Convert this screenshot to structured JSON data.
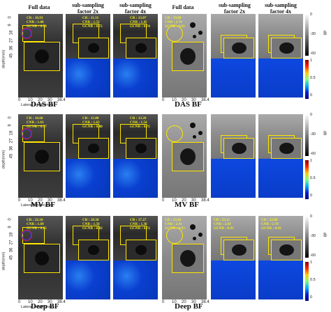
{
  "left_headers": {
    "full": "Full data",
    "sub2": "sub-sampling factor 2x",
    "sub4": "sub-sampling factor 4x"
  },
  "right_headers": {
    "full": "Full data",
    "sub2": "sub-sampling factor 2x",
    "sub4": "sub-sampling factor 4x"
  },
  "axes": {
    "depth_label": "depth(mm)",
    "lateral_label": "Lateral length(mm)",
    "depth_ticks": [
      "0",
      "9",
      "18",
      "27",
      "36",
      "45"
    ],
    "lateral_ticks": [
      "0",
      "10",
      "20",
      "30",
      "38.4"
    ]
  },
  "colorbar_gray": {
    "ticks": [
      "0",
      "-30",
      "-60"
    ],
    "unit": "dB"
  },
  "colorbar_color": {
    "ticks": [
      "1",
      "0.5",
      "0"
    ]
  },
  "rows": [
    {
      "method": "DAS BF",
      "left_metrics": [
        [
          "CR : 16.93",
          "CNR : 1.60",
          "GCNR : 0.78"
        ],
        [
          "CR : 11.31",
          "CNR : 1.52",
          "GCNR : 0.75"
        ],
        [
          "CR : 13.07",
          "CNR : 1.45",
          "GCNR : 0.74"
        ]
      ],
      "right_metrics": [
        [
          "CR : 19.88",
          "CNR : 2.74",
          "GCNR : 0.92"
        ],
        [
          "",
          "",
          ""
        ],
        [
          "",
          "",
          ""
        ]
      ]
    },
    {
      "method": "MV BF",
      "left_metrics": [
        [
          "CR : 16.68",
          "CNR : 1.61",
          "GCNR : 0.77"
        ],
        [
          "CR : 15.00",
          "CNR : 1.63",
          "GCNR : 0.80"
        ],
        [
          "CR : 13.26",
          "CNR : 1.54",
          "GCNR : 0.75"
        ]
      ],
      "right_metrics": [
        [
          "",
          "",
          ""
        ],
        [
          "",
          "",
          ""
        ],
        [
          "",
          "",
          ""
        ]
      ]
    },
    {
      "method": "Deep BF",
      "left_metrics": [
        [
          "CR : 22.10",
          "CNR : 1.69",
          "GCNR : 0.85"
        ],
        [
          "CR : 20.38",
          "CNR : 1.56",
          "GCNR : 0.82"
        ],
        [
          "CR : 17.27",
          "CNR : 1.36",
          "GCNR : 0.72"
        ]
      ],
      "right_metrics": [
        [
          "CR : 25.60",
          "CNR : 2.91",
          "GCNR : 0.93"
        ],
        [
          "CR : 23.11",
          "CNR : 2.83",
          "GCNR : 0.93"
        ],
        [
          "CR : 22.08",
          "CNR : 2.76",
          "GCNR : 0.92"
        ]
      ]
    }
  ]
}
